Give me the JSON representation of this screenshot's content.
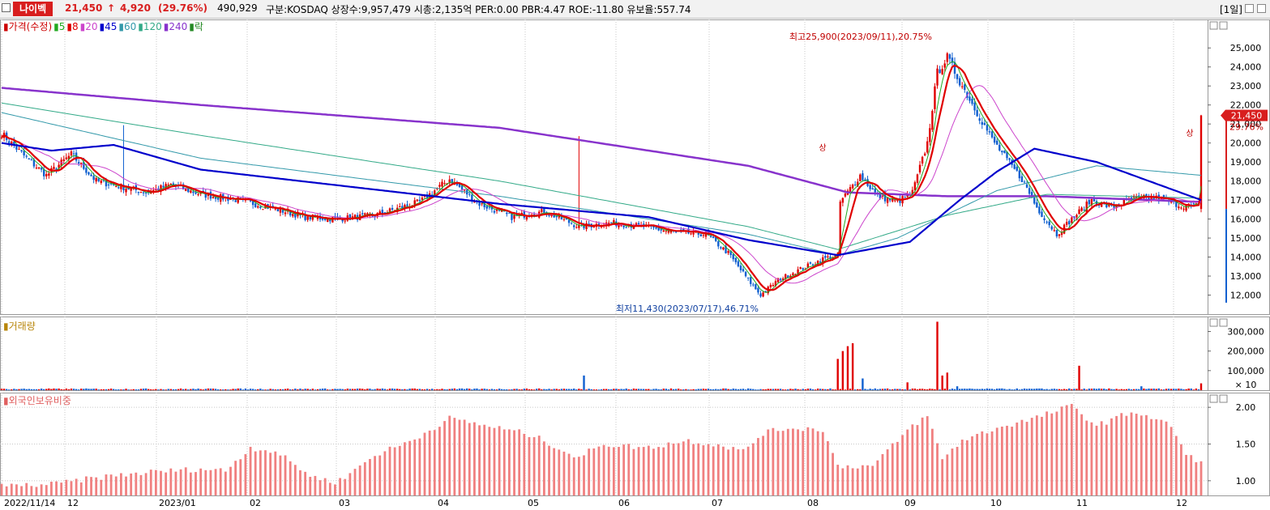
{
  "header": {
    "name": "나이벡",
    "price": "21,450",
    "change_arrow": "↑",
    "change": "4,920",
    "change_pct": "(29.76%)",
    "volume": "490,929",
    "info": "구분:KOSDAQ 상장수:9,957,479 시총:2,135억 PER:0.00 PBR:4.47 ROE:-11.80 유보율:557.74",
    "period": "[1일]"
  },
  "legend": [
    {
      "text": "가격(수정)",
      "color": "#cc0000"
    },
    {
      "text": "5",
      "color": "#22aa22"
    },
    {
      "text": "8",
      "color": "#e00000"
    },
    {
      "text": "20",
      "color": "#cc44cc"
    },
    {
      "text": "45",
      "color": "#0000cc"
    },
    {
      "text": "60",
      "color": "#3399aa"
    },
    {
      "text": "120",
      "color": "#33aa88"
    },
    {
      "text": "240",
      "color": "#8833cc"
    },
    {
      "text": "락",
      "color": "#228822"
    }
  ],
  "volume_label": "거래량",
  "foreign_label": "외국인보유비중",
  "annotations": {
    "high": "최고25,900(2023/09/11),20.75%",
    "low": "최저11,430(2023/07/17),46.71%",
    "limit_up": "상",
    "current_price_tag": "21,450",
    "current_pct_tag": "29.76%",
    "volume_unit": "× 10"
  },
  "colors": {
    "up": "#e00000",
    "down": "#1060d0",
    "grid": "#c8c8c8",
    "foreign_bar": "#f08080"
  },
  "chart_data": [
    {
      "type": "candlestick",
      "title": "",
      "x_ticks": [
        "2022/11/14",
        "12",
        "2023/01",
        "02",
        "03",
        "04",
        "05",
        "06",
        "07",
        "08",
        "09",
        "10",
        "11",
        "12"
      ],
      "y_ticks": [
        "25,000",
        "24,000",
        "23,000",
        "22,000",
        "21,000",
        "20,000",
        "19,000",
        "18,000",
        "17,000",
        "16,000",
        "15,000",
        "14,000",
        "13,000",
        "12,000"
      ],
      "ylim": [
        11000,
        26500
      ],
      "anchors": [
        [
          0,
          20500
        ],
        [
          10,
          19200
        ],
        [
          18,
          18300
        ],
        [
          28,
          19400
        ],
        [
          38,
          18000
        ],
        [
          48,
          17700
        ],
        [
          58,
          17400
        ],
        [
          68,
          17800
        ],
        [
          80,
          17300
        ],
        [
          95,
          17000
        ],
        [
          108,
          16600
        ],
        [
          122,
          16100
        ],
        [
          135,
          16000
        ],
        [
          150,
          16200
        ],
        [
          168,
          16900
        ],
        [
          180,
          18100
        ],
        [
          192,
          16800
        ],
        [
          205,
          16100
        ],
        [
          218,
          16400
        ],
        [
          232,
          15600
        ],
        [
          245,
          15800
        ],
        [
          258,
          15600
        ],
        [
          270,
          15300
        ],
        [
          283,
          15200
        ],
        [
          292,
          14200
        ],
        [
          300,
          12800
        ],
        [
          305,
          12000
        ],
        [
          312,
          12800
        ],
        [
          320,
          13300
        ],
        [
          330,
          13900
        ],
        [
          336,
          14100
        ],
        [
          337,
          16900
        ],
        [
          345,
          18300
        ],
        [
          352,
          17200
        ],
        [
          360,
          16900
        ],
        [
          366,
          17400
        ],
        [
          372,
          20000
        ],
        [
          376,
          23700
        ],
        [
          380,
          24500
        ],
        [
          386,
          23000
        ],
        [
          392,
          21600
        ],
        [
          398,
          20200
        ],
        [
          404,
          19100
        ],
        [
          410,
          18100
        ],
        [
          416,
          16600
        ],
        [
          424,
          15200
        ],
        [
          430,
          16000
        ],
        [
          438,
          17000
        ],
        [
          446,
          16600
        ],
        [
          455,
          17100
        ],
        [
          465,
          17100
        ],
        [
          474,
          16700
        ],
        [
          481,
          16700
        ],
        [
          482,
          21450
        ]
      ],
      "ma_240": [
        [
          0,
          22900
        ],
        [
          80,
          22000
        ],
        [
          200,
          20800
        ],
        [
          300,
          18800
        ],
        [
          340,
          17400
        ],
        [
          380,
          17200
        ],
        [
          420,
          17200
        ],
        [
          482,
          16900
        ]
      ],
      "ma_120": [
        [
          0,
          22100
        ],
        [
          80,
          20400
        ],
        [
          200,
          18000
        ],
        [
          300,
          15600
        ],
        [
          336,
          14400
        ],
        [
          380,
          16200
        ],
        [
          420,
          17300
        ],
        [
          482,
          17100
        ]
      ],
      "ma_60": [
        [
          0,
          21600
        ],
        [
          80,
          19200
        ],
        [
          200,
          17200
        ],
        [
          300,
          15200
        ],
        [
          336,
          14100
        ],
        [
          360,
          15000
        ],
        [
          400,
          17500
        ],
        [
          440,
          18800
        ],
        [
          482,
          18300
        ]
      ],
      "ma_45": [
        [
          0,
          20000
        ],
        [
          20,
          19600
        ],
        [
          45,
          19900
        ],
        [
          80,
          18600
        ],
        [
          200,
          16800
        ],
        [
          260,
          16100
        ],
        [
          300,
          14900
        ],
        [
          336,
          14100
        ],
        [
          365,
          14800
        ],
        [
          385,
          17000
        ],
        [
          400,
          18500
        ],
        [
          415,
          19700
        ],
        [
          440,
          19000
        ],
        [
          482,
          17000
        ]
      ]
    },
    {
      "type": "bar",
      "title": "",
      "y_ticks": [
        "300,000",
        "200,000",
        "100,000"
      ],
      "ylim": [
        0,
        360000
      ],
      "spikes": [
        [
          234,
          75000
        ],
        [
          336,
          160000
        ],
        [
          338,
          200000
        ],
        [
          340,
          225000
        ],
        [
          342,
          240000
        ],
        [
          346,
          60000
        ],
        [
          364,
          40000
        ],
        [
          376,
          350000
        ],
        [
          378,
          75000
        ],
        [
          380,
          90000
        ],
        [
          384,
          20000
        ],
        [
          433,
          125000
        ],
        [
          458,
          20000
        ],
        [
          482,
          35000
        ]
      ]
    },
    {
      "type": "bar",
      "title": "",
      "y_ticks": [
        "2.00",
        "1.50",
        "1.00"
      ],
      "ylim": [
        0.8,
        2.2
      ],
      "anchors": [
        [
          0,
          0.93
        ],
        [
          20,
          0.95
        ],
        [
          40,
          1.05
        ],
        [
          60,
          1.12
        ],
        [
          80,
          1.16
        ],
        [
          90,
          1.14
        ],
        [
          100,
          1.45
        ],
        [
          110,
          1.4
        ],
        [
          125,
          1.05
        ],
        [
          135,
          0.98
        ],
        [
          150,
          1.35
        ],
        [
          165,
          1.55
        ],
        [
          180,
          1.85
        ],
        [
          195,
          1.75
        ],
        [
          210,
          1.65
        ],
        [
          218,
          1.55
        ],
        [
          232,
          1.3
        ],
        [
          240,
          1.5
        ],
        [
          260,
          1.45
        ],
        [
          275,
          1.55
        ],
        [
          290,
          1.48
        ],
        [
          298,
          1.4
        ],
        [
          306,
          1.65
        ],
        [
          316,
          1.72
        ],
        [
          330,
          1.7
        ],
        [
          336,
          1.2
        ],
        [
          350,
          1.2
        ],
        [
          366,
          1.75
        ],
        [
          372,
          1.88
        ],
        [
          378,
          1.3
        ],
        [
          386,
          1.55
        ],
        [
          400,
          1.72
        ],
        [
          415,
          1.85
        ],
        [
          430,
          2.02
        ],
        [
          440,
          1.75
        ],
        [
          455,
          1.95
        ],
        [
          470,
          1.75
        ],
        [
          476,
          1.35
        ],
        [
          482,
          1.25
        ]
      ]
    }
  ]
}
